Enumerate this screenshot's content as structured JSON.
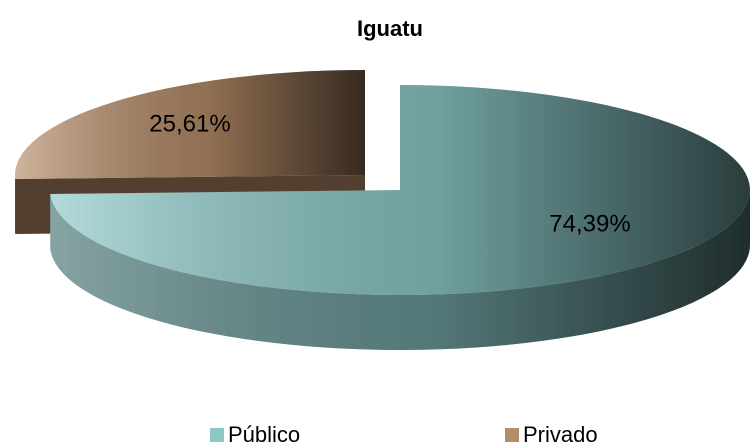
{
  "chart_data": {
    "type": "pie",
    "title": "Iguatu",
    "categories": [
      "Público",
      "Privado"
    ],
    "values": [
      74.39,
      25.61
    ],
    "value_labels": [
      "74,39%",
      "25,61%"
    ],
    "colors": [
      "#8cc8c8",
      "#b58c68"
    ],
    "legend": "bottom"
  }
}
